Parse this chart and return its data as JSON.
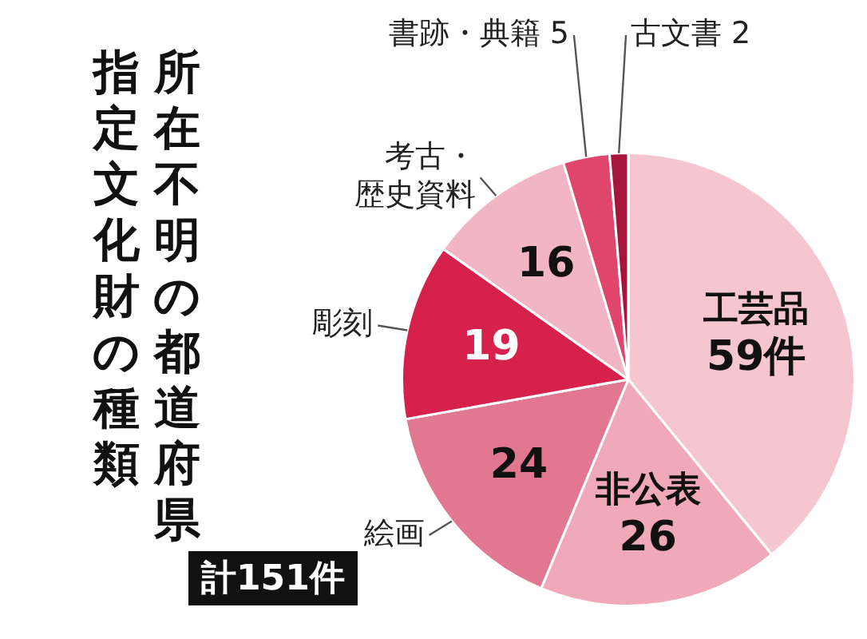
{
  "chart_data": {
    "type": "pie",
    "title": "所在不明の都道府県",
    "subtitle": "指定文化財の種類",
    "categories": [
      "工芸品",
      "非公表",
      "絵画",
      "彫刻",
      "考古・歴史資料",
      "書跡・典籍",
      "古文書"
    ],
    "values": [
      59,
      26,
      24,
      19,
      16,
      5,
      2
    ],
    "value_labels": [
      "59件",
      "26",
      "24",
      "19",
      "16",
      "5",
      "2"
    ],
    "colors": [
      "#f5c6cf",
      "#f0a9b9",
      "#e27790",
      "#d6214d",
      "#f2b5c3",
      "#e0456b",
      "#a5163a"
    ],
    "legend": false,
    "annotations": [
      "計151件"
    ]
  }
}
